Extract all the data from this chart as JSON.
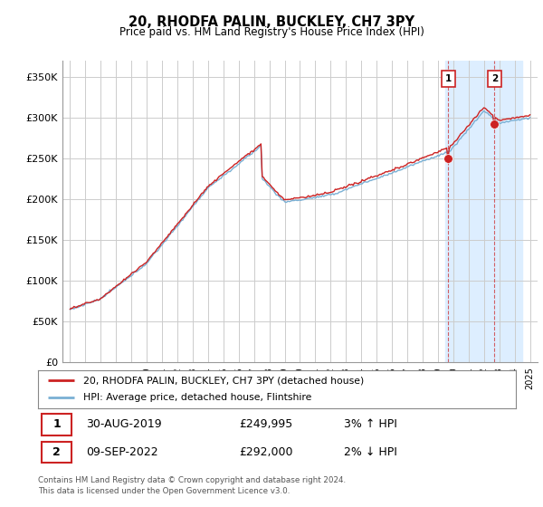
{
  "title": "20, RHODFA PALIN, BUCKLEY, CH7 3PY",
  "subtitle": "Price paid vs. HM Land Registry's House Price Index (HPI)",
  "ylabel_ticks": [
    "£0",
    "£50K",
    "£100K",
    "£150K",
    "£200K",
    "£250K",
    "£300K",
    "£350K"
  ],
  "ytick_vals": [
    0,
    50000,
    100000,
    150000,
    200000,
    250000,
    300000,
    350000
  ],
  "ylim": [
    0,
    370000
  ],
  "xlim_start": 1994.5,
  "xlim_end": 2025.5,
  "hpi_color": "#7ab0d4",
  "price_color": "#cc2222",
  "marker1_year": 2019.67,
  "marker1_price": 249995,
  "marker2_year": 2022.69,
  "marker2_price": 292000,
  "legend_line1": "20, RHODFA PALIN, BUCKLEY, CH7 3PY (detached house)",
  "legend_line2": "HPI: Average price, detached house, Flintshire",
  "footer1": "Contains HM Land Registry data © Crown copyright and database right 2024.",
  "footer2": "This data is licensed under the Open Government Licence v3.0.",
  "table_row1": [
    "1",
    "30-AUG-2019",
    "£249,995",
    "3% ↑ HPI"
  ],
  "table_row2": [
    "2",
    "09-SEP-2022",
    "£292,000",
    "2% ↓ HPI"
  ],
  "background_color": "#ffffff",
  "grid_color": "#cccccc",
  "shaded_color": "#ddeeff",
  "shaded_regions": [
    {
      "start": 2019.5,
      "end": 2024.5
    }
  ],
  "dashed_lines": [
    2019.67,
    2022.69
  ]
}
